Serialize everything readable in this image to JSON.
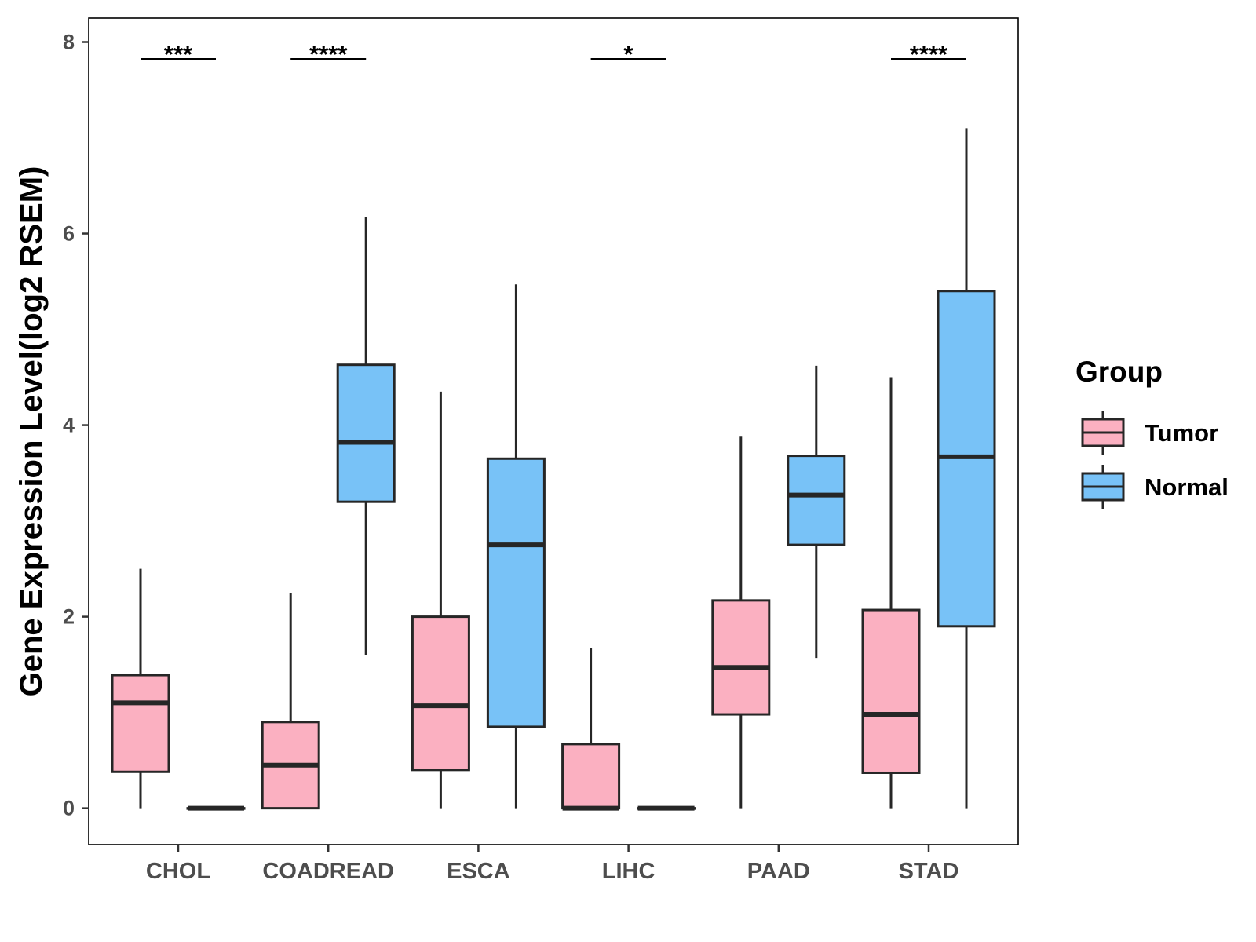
{
  "chart_data": {
    "type": "boxplot",
    "title": "",
    "xlabel": "",
    "ylabel": "Gene Expression Level(log2 RSEM)",
    "ylim": [
      -0.38,
      8.25
    ],
    "yticks": [
      0,
      2,
      4,
      6,
      8
    ],
    "grid": false,
    "categories": [
      "CHOL",
      "COADREAD",
      "ESCA",
      "LIHC",
      "PAAD",
      "STAD"
    ],
    "legend": {
      "title": "Group",
      "position": "right",
      "entries": [
        "Tumor",
        "Normal"
      ]
    },
    "series": [
      {
        "name": "Tumor",
        "color": "#FBB0C1",
        "boxes": [
          {
            "min": 0.0,
            "q1": 0.38,
            "median": 1.1,
            "q3": 1.39,
            "max": 2.5
          },
          {
            "min": 0.0,
            "q1": 0.0,
            "median": 0.45,
            "q3": 0.9,
            "max": 2.25
          },
          {
            "min": 0.0,
            "q1": 0.4,
            "median": 1.07,
            "q3": 2.0,
            "max": 4.35
          },
          {
            "min": 0.0,
            "q1": 0.0,
            "median": 0.0,
            "q3": 0.67,
            "max": 1.67
          },
          {
            "min": 0.0,
            "q1": 0.98,
            "median": 1.47,
            "q3": 2.17,
            "max": 3.88
          },
          {
            "min": 0.0,
            "q1": 0.37,
            "median": 0.98,
            "q3": 2.07,
            "max": 4.5
          }
        ]
      },
      {
        "name": "Normal",
        "color": "#78C2F7",
        "boxes": [
          {
            "min": 0.0,
            "q1": 0.0,
            "median": 0.0,
            "q3": 0.0,
            "max": 0.0
          },
          {
            "min": 1.6,
            "q1": 3.2,
            "median": 3.82,
            "q3": 4.63,
            "max": 6.17
          },
          {
            "min": 0.0,
            "q1": 0.85,
            "median": 2.75,
            "q3": 3.65,
            "max": 5.47
          },
          {
            "min": 0.0,
            "q1": 0.0,
            "median": 0.0,
            "q3": 0.0,
            "max": 0.0
          },
          {
            "min": 1.57,
            "q1": 2.75,
            "median": 3.27,
            "q3": 3.68,
            "max": 4.62
          },
          {
            "min": 0.0,
            "q1": 1.9,
            "median": 3.67,
            "q3": 5.4,
            "max": 7.1
          }
        ]
      }
    ],
    "significance": [
      {
        "category": "CHOL",
        "label": "***",
        "y": 7.82
      },
      {
        "category": "COADREAD",
        "label": "****",
        "y": 7.82
      },
      {
        "category": "LIHC",
        "label": "*",
        "y": 7.82
      },
      {
        "category": "STAD",
        "label": "****",
        "y": 7.82
      }
    ]
  }
}
